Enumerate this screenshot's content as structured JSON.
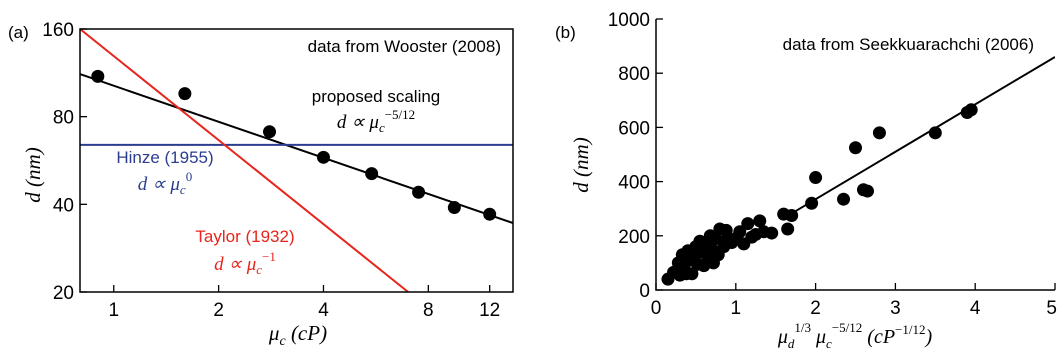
{
  "chart_data": [
    {
      "type": "scatter",
      "panel_label": "(a)",
      "xscale": "log",
      "yscale": "log",
      "xlim": [
        0.8,
        14
      ],
      "ylim": [
        20,
        160
      ],
      "x_ticks": [
        1,
        2,
        4,
        8,
        12
      ],
      "x_tick_labels": [
        "1",
        "2",
        "4",
        "8",
        "12"
      ],
      "y_ticks": [
        20,
        40,
        80,
        160
      ],
      "y_tick_labels": [
        "20",
        "40",
        "80",
        "160"
      ],
      "xlabel_sym": "μ",
      "xlabel_sub": "c",
      "xlabel_unit": "(cP)",
      "ylabel_sym": "d",
      "ylabel_unit": "(nm)",
      "annotation": "data from Wooster (2008)",
      "grid": false,
      "series": [
        {
          "kind": "points",
          "color": "#000000",
          "x": [
            0.9,
            1.6,
            2.8,
            4.0,
            5.5,
            7.5,
            9.5,
            12.0
          ],
          "y": [
            110,
            96,
            71,
            58,
            51,
            44,
            39,
            37
          ]
        },
        {
          "kind": "line",
          "label": "proposed scaling",
          "formula": "d ∝ μc^−5/12",
          "color": "#000000",
          "x": [
            0.8,
            14
          ],
          "y": [
            112,
            34.5
          ]
        },
        {
          "kind": "line",
          "label": "Hinze (1955)",
          "formula": "d ∝ μc^0",
          "color": "#2b3d8f",
          "x": [
            0.8,
            14
          ],
          "y": [
            64,
            64
          ]
        },
        {
          "kind": "line",
          "label": "Taylor (1932)",
          "formula": "d ∝ μc^−1",
          "color": "#e8241c",
          "x": [
            0.8,
            7.0
          ],
          "y": [
            160,
            20
          ]
        }
      ],
      "labels": {
        "proposed": "proposed scaling",
        "hinze": "Hinze (1955)",
        "taylor": "Taylor (1932)"
      }
    },
    {
      "type": "scatter",
      "panel_label": "(b)",
      "xlim": [
        0,
        5
      ],
      "ylim": [
        0,
        1000
      ],
      "x_ticks": [
        0,
        1,
        2,
        3,
        4,
        5
      ],
      "x_tick_labels": [
        "0",
        "1",
        "2",
        "3",
        "4",
        "5"
      ],
      "y_ticks": [
        0,
        200,
        400,
        600,
        800,
        1000
      ],
      "y_tick_labels": [
        "0",
        "200",
        "400",
        "600",
        "800",
        "1000"
      ],
      "xlabel_text": "μd^1/3 μc^−5/12 (cP^−1/12)",
      "ylabel_sym": "d",
      "ylabel_unit": "(nm)",
      "annotation": "data from Seekkuarachchi (2006)",
      "grid": false,
      "series": [
        {
          "kind": "points",
          "color": "#000000",
          "x": [
            0.15,
            0.22,
            0.28,
            0.3,
            0.33,
            0.35,
            0.38,
            0.4,
            0.42,
            0.45,
            0.48,
            0.5,
            0.52,
            0.55,
            0.58,
            0.6,
            0.62,
            0.65,
            0.68,
            0.7,
            0.72,
            0.75,
            0.78,
            0.8,
            0.85,
            0.88,
            0.9,
            0.95,
            1.0,
            1.05,
            1.1,
            1.15,
            1.2,
            1.25,
            1.3,
            1.35,
            1.45,
            1.6,
            1.65,
            1.7,
            1.95,
            2.0,
            2.35,
            2.5,
            2.6,
            2.65,
            2.8,
            3.5,
            3.9,
            3.95
          ],
          "y": [
            40,
            65,
            100,
            55,
            130,
            80,
            60,
            145,
            110,
            60,
            120,
            160,
            95,
            180,
            140,
            90,
            170,
            120,
            200,
            150,
            100,
            190,
            130,
            225,
            160,
            220,
            190,
            175,
            190,
            215,
            170,
            245,
            195,
            205,
            255,
            215,
            210,
            280,
            225,
            275,
            320,
            415,
            335,
            525,
            370,
            365,
            580,
            580,
            655,
            665
          ]
        },
        {
          "kind": "line",
          "color": "#000000",
          "x": [
            1.6,
            5.0
          ],
          "y": [
            265,
            860
          ]
        }
      ]
    }
  ]
}
